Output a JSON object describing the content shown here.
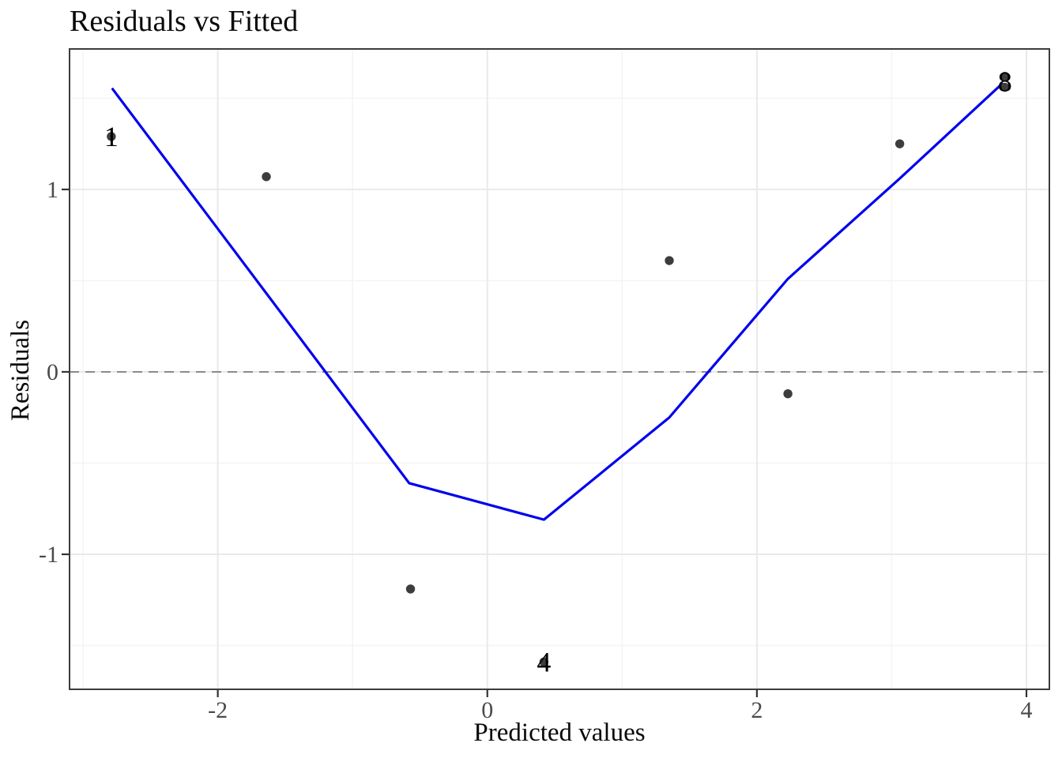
{
  "chart_data": {
    "type": "scatter",
    "title": "Residuals vs Fitted",
    "xlabel": "Predicted values",
    "ylabel": "Residuals",
    "xlim": [
      -3.1,
      4.17
    ],
    "ylim": [
      -1.74,
      1.77
    ],
    "x_ticks_major": [
      -2,
      0,
      2,
      4
    ],
    "x_ticks_minor": [
      -3,
      -1,
      1,
      3
    ],
    "y_ticks_major": [
      -1,
      0,
      1
    ],
    "y_ticks_minor": [
      -1.5,
      -0.5,
      0.5,
      1.5
    ],
    "grid": true,
    "legend": "none",
    "zero_line_y": 0,
    "points": [
      {
        "x": -2.79,
        "y": 1.29
      },
      {
        "x": -1.64,
        "y": 1.07
      },
      {
        "x": -0.57,
        "y": -1.19
      },
      {
        "x": 0.42,
        "y": -1.59
      },
      {
        "x": 1.35,
        "y": 0.61
      },
      {
        "x": 2.23,
        "y": -0.12
      },
      {
        "x": 3.06,
        "y": 1.25
      },
      {
        "x": 3.84,
        "y": 1.62
      },
      {
        "x": 3.84,
        "y": 1.56
      }
    ],
    "point_labels": [
      {
        "text": "1",
        "x": -2.79,
        "y": 1.29
      },
      {
        "text": "4",
        "x": 0.42,
        "y": -1.59
      },
      {
        "text": "8",
        "x": 3.84,
        "y": 1.59
      }
    ],
    "smooth_line": [
      {
        "x": -2.78,
        "y": 1.55
      },
      {
        "x": -0.58,
        "y": -0.61
      },
      {
        "x": 0.42,
        "y": -0.81
      },
      {
        "x": 1.35,
        "y": -0.25
      },
      {
        "x": 2.23,
        "y": 0.51
      },
      {
        "x": 3.06,
        "y": 1.06
      },
      {
        "x": 3.82,
        "y": 1.58
      }
    ],
    "colors": {
      "point": "#3d3d3d",
      "smooth_line": "#0000ee",
      "zero_line": "#8a8a8a",
      "grid_major": "#e9e9e9",
      "grid_minor": "#f4f4f4",
      "panel_border": "#3c3c3c",
      "axis_tick": "#333333",
      "tick_label": "#4a4a4a",
      "text": "#0a0a0a"
    }
  }
}
